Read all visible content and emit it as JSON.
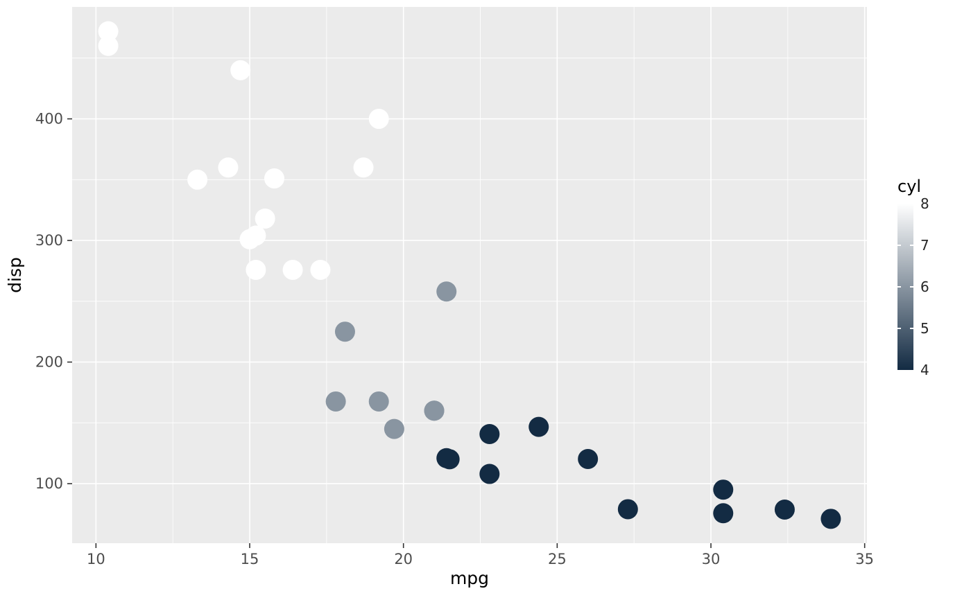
{
  "chart_data": {
    "type": "scatter",
    "title": "",
    "xlabel": "mpg",
    "ylabel": "disp",
    "legend": {
      "title": "cyl",
      "ticks": [
        8,
        7,
        6,
        5,
        4
      ],
      "position": "right",
      "low_value": 4,
      "high_value": 8
    },
    "x_axis": {
      "ticks": [
        10,
        15,
        20,
        25,
        30,
        35
      ],
      "minor": [
        12.5,
        17.5,
        22.5,
        27.5,
        32.5
      ],
      "range": [
        9.225,
        35.075
      ]
    },
    "y_axis": {
      "ticks": [
        100,
        200,
        300,
        400
      ],
      "minor": [
        150,
        250,
        350,
        450
      ],
      "range": [
        51.055,
        492.045
      ]
    },
    "colors": {
      "panel_background": "#EBEBEB",
      "gridline": "#FFFFFF",
      "axis_text": "#4D4D4D",
      "axis_title": "#000000",
      "tick_mark": "#333333",
      "scale_low": "#132B43",
      "scale_high": "#FFFFFF"
    },
    "points": [
      {
        "mpg": 21.0,
        "disp": 160.0,
        "cyl": 6
      },
      {
        "mpg": 21.0,
        "disp": 160.0,
        "cyl": 6
      },
      {
        "mpg": 22.8,
        "disp": 108.0,
        "cyl": 4
      },
      {
        "mpg": 21.4,
        "disp": 258.0,
        "cyl": 6
      },
      {
        "mpg": 18.7,
        "disp": 360.0,
        "cyl": 8
      },
      {
        "mpg": 18.1,
        "disp": 225.0,
        "cyl": 6
      },
      {
        "mpg": 14.3,
        "disp": 360.0,
        "cyl": 8
      },
      {
        "mpg": 24.4,
        "disp": 146.7,
        "cyl": 4
      },
      {
        "mpg": 22.8,
        "disp": 140.8,
        "cyl": 4
      },
      {
        "mpg": 19.2,
        "disp": 167.6,
        "cyl": 6
      },
      {
        "mpg": 17.8,
        "disp": 167.6,
        "cyl": 6
      },
      {
        "mpg": 16.4,
        "disp": 275.8,
        "cyl": 8
      },
      {
        "mpg": 17.3,
        "disp": 275.8,
        "cyl": 8
      },
      {
        "mpg": 15.2,
        "disp": 275.8,
        "cyl": 8
      },
      {
        "mpg": 10.4,
        "disp": 472.0,
        "cyl": 8
      },
      {
        "mpg": 10.4,
        "disp": 460.0,
        "cyl": 8
      },
      {
        "mpg": 14.7,
        "disp": 440.0,
        "cyl": 8
      },
      {
        "mpg": 32.4,
        "disp": 78.7,
        "cyl": 4
      },
      {
        "mpg": 30.4,
        "disp": 75.7,
        "cyl": 4
      },
      {
        "mpg": 33.9,
        "disp": 71.1,
        "cyl": 4
      },
      {
        "mpg": 21.5,
        "disp": 120.1,
        "cyl": 4
      },
      {
        "mpg": 15.5,
        "disp": 318.0,
        "cyl": 8
      },
      {
        "mpg": 15.2,
        "disp": 304.0,
        "cyl": 8
      },
      {
        "mpg": 13.3,
        "disp": 350.0,
        "cyl": 8
      },
      {
        "mpg": 19.2,
        "disp": 400.0,
        "cyl": 8
      },
      {
        "mpg": 27.3,
        "disp": 79.0,
        "cyl": 4
      },
      {
        "mpg": 26.0,
        "disp": 120.3,
        "cyl": 4
      },
      {
        "mpg": 30.4,
        "disp": 95.1,
        "cyl": 4
      },
      {
        "mpg": 15.8,
        "disp": 351.0,
        "cyl": 8
      },
      {
        "mpg": 19.7,
        "disp": 145.0,
        "cyl": 6
      },
      {
        "mpg": 15.0,
        "disp": 301.0,
        "cyl": 8
      },
      {
        "mpg": 21.4,
        "disp": 121.0,
        "cyl": 4
      }
    ]
  }
}
